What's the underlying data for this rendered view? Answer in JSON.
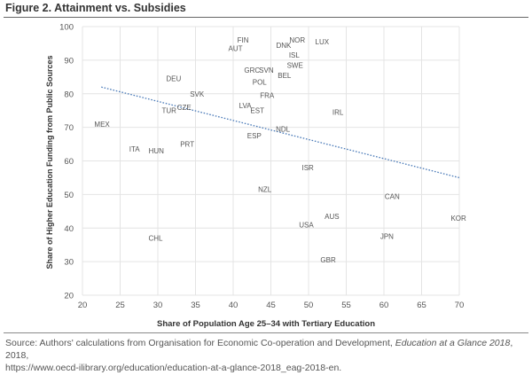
{
  "figure_title": "Figure 2. Attainment vs. Subsidies",
  "source": {
    "prefix": "Source: Authors' calculations from Organisation for Economic Co-operation and Development,",
    "publication": "Education at a Glance 2018",
    "suffix": ", 2018,",
    "url": "https://www.oecd-ilibrary.org/education/education-at-a-glance-2018_eag-2018-en."
  },
  "colors": {
    "trendline": "#4a7ab8",
    "grid": "#e4e4e4",
    "text": "#555555",
    "axis_label": "#333333"
  },
  "chart_data": {
    "type": "scatter",
    "xlabel": "Share of Population Age 25–34 with Tertiary Education",
    "ylabel": "Share of Higher Education Funding from Public Sources",
    "xlim": [
      20,
      70
    ],
    "ylim": [
      20,
      100
    ],
    "xticks": [
      20,
      25,
      30,
      35,
      40,
      45,
      50,
      55,
      60,
      65,
      70
    ],
    "yticks": [
      20,
      30,
      40,
      50,
      60,
      70,
      80,
      90,
      100
    ],
    "grid": true,
    "trendline": {
      "x": [
        22.5,
        70
      ],
      "y": [
        82,
        55
      ]
    },
    "points": [
      {
        "label": "FIN",
        "x": 41.3,
        "y": 96
      },
      {
        "label": "AUT",
        "x": 40.3,
        "y": 93.5
      },
      {
        "label": "NOR",
        "x": 48.5,
        "y": 96
      },
      {
        "label": "DNK",
        "x": 46.7,
        "y": 94.5
      },
      {
        "label": "LUX",
        "x": 51.8,
        "y": 95.5
      },
      {
        "label": "ISL",
        "x": 48.1,
        "y": 91.5
      },
      {
        "label": "SWE",
        "x": 48.2,
        "y": 88.5
      },
      {
        "label": "GRC",
        "x": 42.5,
        "y": 87
      },
      {
        "label": "SVN",
        "x": 44.4,
        "y": 87
      },
      {
        "label": "BEL",
        "x": 46.8,
        "y": 85.5
      },
      {
        "label": "POL",
        "x": 43.5,
        "y": 83.5
      },
      {
        "label": "DEU",
        "x": 32.1,
        "y": 84.5
      },
      {
        "label": "SVK",
        "x": 35.2,
        "y": 80
      },
      {
        "label": "FRA",
        "x": 44.5,
        "y": 79.5
      },
      {
        "label": "LVA",
        "x": 41.6,
        "y": 76.5
      },
      {
        "label": "EST",
        "x": 43.2,
        "y": 75
      },
      {
        "label": "CZE",
        "x": 33.5,
        "y": 76
      },
      {
        "label": "TUR",
        "x": 31.5,
        "y": 75
      },
      {
        "label": "IRL",
        "x": 53.9,
        "y": 74.5
      },
      {
        "label": "MEX",
        "x": 22.6,
        "y": 71
      },
      {
        "label": "NDL",
        "x": 46.6,
        "y": 69.5
      },
      {
        "label": "ESP",
        "x": 42.8,
        "y": 67.5
      },
      {
        "label": "PRT",
        "x": 33.9,
        "y": 65
      },
      {
        "label": "ITA",
        "x": 26.9,
        "y": 63.5
      },
      {
        "label": "HUN",
        "x": 29.8,
        "y": 63
      },
      {
        "label": "ISR",
        "x": 49.9,
        "y": 58
      },
      {
        "label": "NZL",
        "x": 44.2,
        "y": 51.5
      },
      {
        "label": "CAN",
        "x": 61.1,
        "y": 49.5
      },
      {
        "label": "AUS",
        "x": 53.1,
        "y": 43.5
      },
      {
        "label": "USA",
        "x": 49.7,
        "y": 41
      },
      {
        "label": "KOR",
        "x": 69.9,
        "y": 43
      },
      {
        "label": "JPN",
        "x": 60.4,
        "y": 37.5
      },
      {
        "label": "CHL",
        "x": 29.7,
        "y": 37
      },
      {
        "label": "GBR",
        "x": 52.6,
        "y": 30.5
      }
    ]
  }
}
